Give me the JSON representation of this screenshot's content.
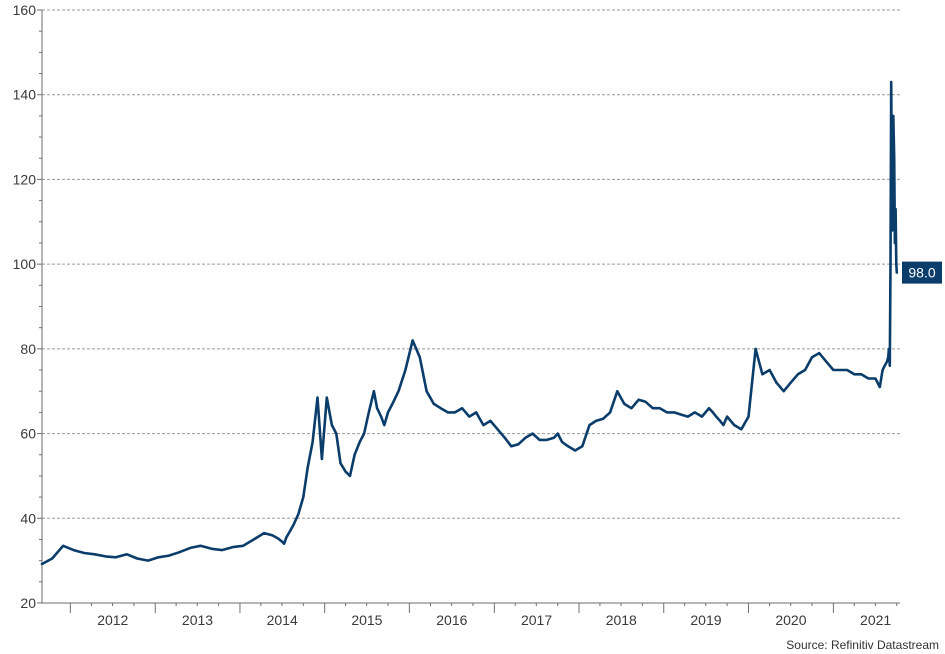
{
  "chart_data": {
    "type": "line",
    "title": "",
    "xlabel": "",
    "ylabel": "",
    "ylim": [
      20,
      160
    ],
    "xlim": [
      "2011-09-01",
      "2021-10-15"
    ],
    "y_ticks": [
      20,
      40,
      60,
      80,
      100,
      120,
      140,
      160
    ],
    "x_tick_labels": [
      "2012",
      "2013",
      "2014",
      "2015",
      "2016",
      "2017",
      "2018",
      "2019",
      "2020",
      "2021"
    ],
    "grid": "horizontal dashed",
    "series": [
      {
        "color": "#0b3d6b",
        "x": [
          "2011-09-01",
          "2011-10-15",
          "2011-12-01",
          "2012-01-15",
          "2012-03-01",
          "2012-04-15",
          "2012-06-01",
          "2012-07-15",
          "2012-09-01",
          "2012-10-15",
          "2012-12-01",
          "2013-01-15",
          "2013-03-01",
          "2013-04-15",
          "2013-06-01",
          "2013-07-15",
          "2013-09-01",
          "2013-10-15",
          "2013-12-01",
          "2014-01-15",
          "2014-03-01",
          "2014-04-15",
          "2014-05-20",
          "2014-06-15",
          "2014-07-01",
          "2014-07-10",
          "2014-07-20",
          "2014-08-05",
          "2014-08-20",
          "2014-09-10",
          "2014-10-01",
          "2014-10-20",
          "2014-11-10",
          "2014-12-01",
          "2014-12-20",
          "2015-01-10",
          "2015-02-01",
          "2015-02-20",
          "2015-03-10",
          "2015-04-01",
          "2015-04-20",
          "2015-05-10",
          "2015-06-01",
          "2015-06-20",
          "2015-07-10",
          "2015-08-01",
          "2015-08-15",
          "2015-09-01",
          "2015-09-15",
          "2015-10-01",
          "2015-10-20",
          "2015-11-15",
          "2015-12-15",
          "2016-01-15",
          "2016-02-15",
          "2016-03-15",
          "2016-04-15",
          "2016-05-15",
          "2016-06-15",
          "2016-07-15",
          "2016-08-15",
          "2016-09-15",
          "2016-10-15",
          "2016-11-15",
          "2016-12-15",
          "2017-01-15",
          "2017-02-15",
          "2017-03-15",
          "2017-04-15",
          "2017-05-15",
          "2017-06-15",
          "2017-07-15",
          "2017-08-15",
          "2017-09-15",
          "2017-10-01",
          "2017-10-20",
          "2017-11-15",
          "2017-12-15",
          "2018-01-15",
          "2018-02-15",
          "2018-03-15",
          "2018-04-15",
          "2018-05-15",
          "2018-06-15",
          "2018-07-15",
          "2018-08-15",
          "2018-09-15",
          "2018-10-15",
          "2018-11-15",
          "2018-12-15",
          "2019-01-15",
          "2019-02-15",
          "2019-03-15",
          "2019-04-15",
          "2019-05-15",
          "2019-06-15",
          "2019-07-15",
          "2019-08-01",
          "2019-08-15",
          "2019-09-01",
          "2019-09-15",
          "2019-10-01",
          "2019-11-01",
          "2019-12-01",
          "2020-01-01",
          "2020-02-01",
          "2020-03-01",
          "2020-04-01",
          "2020-05-01",
          "2020-06-01",
          "2020-07-01",
          "2020-08-01",
          "2020-09-01",
          "2020-10-01",
          "2020-11-01",
          "2020-12-01",
          "2021-01-01",
          "2021-02-01",
          "2021-03-01",
          "2021-04-01",
          "2021-05-01",
          "2021-06-01",
          "2021-07-01",
          "2021-07-20",
          "2021-08-01",
          "2021-08-10",
          "2021-08-20",
          "2021-08-25",
          "2021-08-28",
          "2021-09-01",
          "2021-09-04",
          "2021-09-07",
          "2021-09-10",
          "2021-09-13",
          "2021-09-16",
          "2021-09-20",
          "2021-09-23",
          "2021-09-26",
          "2021-09-29",
          "2021-10-01"
        ],
        "y": [
          29.2,
          30.5,
          33.5,
          32.5,
          31.8,
          31.5,
          31.0,
          30.8,
          31.5,
          30.5,
          30.0,
          30.8,
          31.2,
          32.0,
          33.0,
          33.5,
          32.8,
          32.5,
          33.2,
          33.5,
          35.0,
          36.5,
          36.0,
          35.2,
          34.5,
          34.0,
          35.5,
          37.0,
          38.5,
          41.0,
          45.0,
          52.0,
          58.0,
          68.5,
          54.0,
          68.5,
          62.0,
          60.0,
          53.0,
          51.0,
          50.0,
          55.0,
          58.0,
          60.0,
          65.0,
          70.0,
          66.0,
          64.0,
          62.0,
          65.0,
          67.0,
          70.0,
          75.0,
          82.0,
          78.0,
          70.0,
          67.0,
          66.0,
          65.0,
          65.0,
          66.0,
          64.0,
          65.0,
          62.0,
          63.0,
          61.0,
          59.0,
          57.0,
          57.5,
          59.0,
          60.0,
          58.5,
          58.5,
          59.0,
          60.0,
          58.0,
          57.0,
          56.0,
          57.0,
          62.0,
          63.0,
          63.5,
          65.0,
          70.0,
          67.0,
          66.0,
          68.0,
          67.5,
          66.0,
          66.0,
          65.0,
          65.0,
          64.5,
          64.0,
          65.0,
          64.0,
          66.0,
          65.0,
          64.0,
          63.0,
          62.0,
          64.0,
          62.0,
          61.0,
          64.0,
          80.0,
          74.0,
          75.0,
          72.0,
          70.0,
          72.0,
          74.0,
          75.0,
          78.0,
          79.0,
          77.0,
          75.0,
          75.0,
          75.0,
          74.0,
          74.0,
          73.0,
          73.0,
          71.0,
          75.0,
          76.0,
          77.0,
          78.0,
          80.0,
          76.0,
          100.0,
          143.0,
          118.0,
          108.0,
          135.0,
          125.0,
          105.0,
          113.0,
          100.0,
          98.0
        ],
        "end_label": "98.0"
      }
    ]
  },
  "source": "Source: Refinitiv Datastream"
}
